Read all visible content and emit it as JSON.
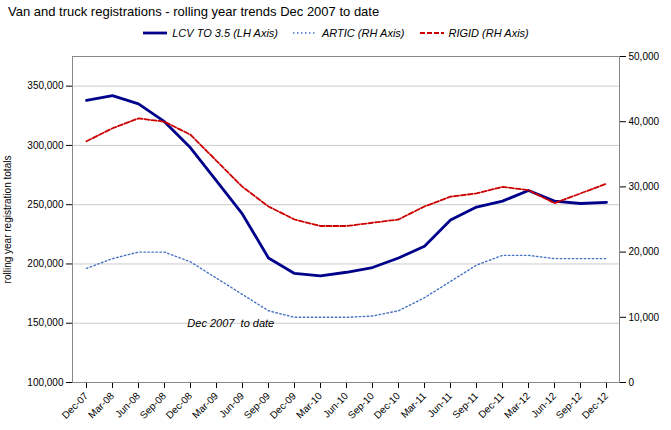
{
  "chart_data": {
    "type": "line",
    "title": "Van and truck registrations - rolling year trends Dec 2007 to date",
    "annotation": "Dec 2007  to date",
    "ylabel": "rolling year registration totals",
    "categories": [
      "Dec-07",
      "Mar-08",
      "Jun-08",
      "Sep-08",
      "Dec-08",
      "Mar-09",
      "Jun-09",
      "Sep-09",
      "Dec-09",
      "Mar-10",
      "Jun-10",
      "Sep-10",
      "Dec-10",
      "Mar-11",
      "Jun-11",
      "Sep-11",
      "Dec-11",
      "Mar-12",
      "Jun-12",
      "Sep-12",
      "Dec-12"
    ],
    "series": [
      {
        "name": "LCV TO 3.5 (LH Axis)",
        "color": "#00008B",
        "line_style": "solid",
        "values": [
          338000,
          342000,
          335000,
          320000,
          298000,
          270000,
          242000,
          205000,
          192000,
          190000,
          193000,
          197000,
          205000,
          215000,
          237000,
          248000,
          253000,
          262000,
          253000,
          251000,
          252000
        ]
      },
      {
        "name": "ARTIC (RH Axis)",
        "color": "#4472C4",
        "line_style": "dotted",
        "axis": "y2",
        "values": [
          17500,
          19000,
          20000,
          20000,
          18500,
          16000,
          13500,
          11000,
          10000,
          10000,
          10000,
          10200,
          11000,
          13000,
          15500,
          18000,
          19500,
          19500,
          19000,
          19000,
          19000
        ]
      },
      {
        "name": "RIGID (RH Axis)",
        "color": "#CC0000",
        "line_style": "dashed",
        "axis": "y2",
        "values": [
          37000,
          39000,
          40500,
          40000,
          38000,
          34000,
          30000,
          27000,
          25000,
          24000,
          24000,
          24500,
          25000,
          27000,
          28500,
          29000,
          30000,
          29500,
          27500,
          29000,
          30500
        ]
      }
    ],
    "ylim": [
      100000,
      375000
    ],
    "yticks": [
      {
        "value": 100000,
        "label": "100,000"
      },
      {
        "value": 150000,
        "label": "150,000"
      },
      {
        "value": 200000,
        "label": "200,000"
      },
      {
        "value": 250000,
        "label": "250,000"
      },
      {
        "value": 300000,
        "label": "300,000"
      },
      {
        "value": 350000,
        "label": "350,000"
      }
    ],
    "y2lim": [
      0,
      50000
    ],
    "y2ticks": [
      0,
      {
        "value": 10000,
        "label": "10,000"
      },
      {
        "value": 20000,
        "label": "20,000"
      },
      {
        "value": 30000,
        "label": "30,000"
      },
      {
        "value": 40000,
        "label": "40,000"
      },
      {
        "value": 50000,
        "label": "50,000"
      }
    ],
    "grid": true,
    "legend": "upper center"
  }
}
